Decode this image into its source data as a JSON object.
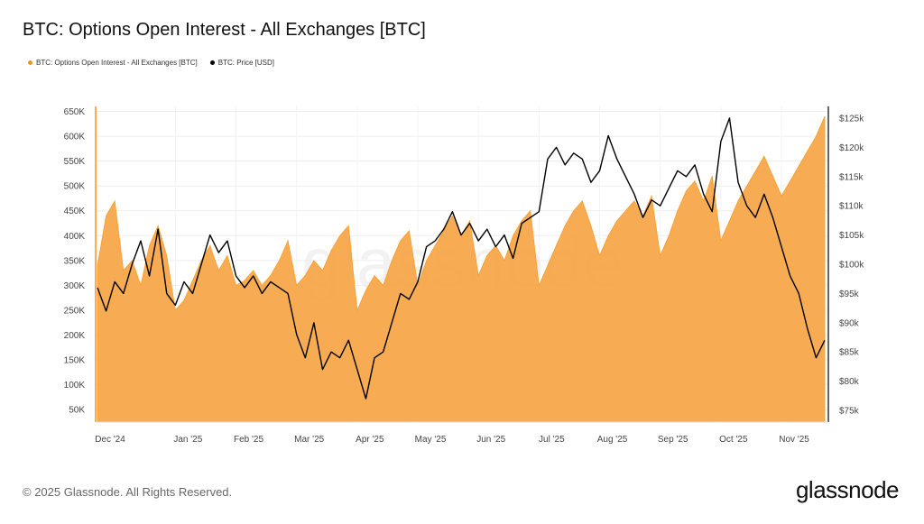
{
  "title": "BTC: Options Open Interest - All Exchanges [BTC]",
  "legend": [
    {
      "label": "BTC: Options Open Interest - All Exchanges [BTC]",
      "color": "#f7931a"
    },
    {
      "label": "BTC: Price [USD]",
      "color": "#000000"
    }
  ],
  "watermark": "glassnode",
  "footer": "© 2025 Glassnode. All Rights Reserved.",
  "brand": "glassnode",
  "colors": {
    "area": "#f7a84a",
    "area_stroke": "#f79a22",
    "price": "#000000"
  },
  "chart_data": {
    "type": "area",
    "x_tick_labels": [
      "Dec '24",
      "Jan '25",
      "Feb '25",
      "Mar '25",
      "Apr '25",
      "May '25",
      "Jun '25",
      "Jul '25",
      "Aug '25",
      "Sep '25",
      "Oct '25",
      "Nov '25"
    ],
    "y_left": {
      "ticks": [
        "50K",
        "100K",
        "150K",
        "200K",
        "250K",
        "300K",
        "350K",
        "400K",
        "450K",
        "500K",
        "550K",
        "600K",
        "650K"
      ],
      "range": [
        25000,
        660000
      ]
    },
    "y_right": {
      "ticks": [
        "$75k",
        "$80k",
        "$85k",
        "$90k",
        "$95k",
        "$100k",
        "$105k",
        "$110k",
        "$115k",
        "$120k",
        "$125k"
      ],
      "range": [
        73000,
        127000
      ]
    },
    "grid": true,
    "legend_position": "top-left",
    "series": [
      {
        "name": "BTC: Options Open Interest - All Exchanges [BTC]",
        "axis": "left",
        "type": "area",
        "points": [
          [
            "Dec '24",
            340000
          ],
          [
            "",
            440000
          ],
          [
            "",
            470000
          ],
          [
            "",
            330000
          ],
          [
            "",
            350000
          ],
          [
            "",
            300000
          ],
          [
            "",
            380000
          ],
          [
            "",
            420000
          ],
          [
            "",
            360000
          ],
          [
            "Jan '25",
            250000
          ],
          [
            "",
            270000
          ],
          [
            "",
            310000
          ],
          [
            "",
            350000
          ],
          [
            "",
            380000
          ],
          [
            "",
            330000
          ],
          [
            "",
            360000
          ],
          [
            "Feb '25",
            300000
          ],
          [
            "",
            310000
          ],
          [
            "",
            330000
          ],
          [
            "",
            300000
          ],
          [
            "",
            320000
          ],
          [
            "",
            350000
          ],
          [
            "",
            390000
          ],
          [
            "Mar '25",
            300000
          ],
          [
            "",
            320000
          ],
          [
            "",
            350000
          ],
          [
            "",
            330000
          ],
          [
            "",
            370000
          ],
          [
            "",
            400000
          ],
          [
            "",
            420000
          ],
          [
            "Apr '25",
            250000
          ],
          [
            "",
            290000
          ],
          [
            "",
            320000
          ],
          [
            "",
            300000
          ],
          [
            "",
            350000
          ],
          [
            "",
            390000
          ],
          [
            "",
            410000
          ],
          [
            "May '25",
            300000
          ],
          [
            "",
            350000
          ],
          [
            "",
            380000
          ],
          [
            "",
            410000
          ],
          [
            "",
            440000
          ],
          [
            "",
            400000
          ],
          [
            "",
            430000
          ],
          [
            "Jun '25",
            320000
          ],
          [
            "",
            360000
          ],
          [
            "",
            380000
          ],
          [
            "",
            350000
          ],
          [
            "",
            400000
          ],
          [
            "",
            430000
          ],
          [
            "",
            450000
          ],
          [
            "Jul '25",
            300000
          ],
          [
            "",
            340000
          ],
          [
            "",
            380000
          ],
          [
            "",
            420000
          ],
          [
            "",
            450000
          ],
          [
            "",
            470000
          ],
          [
            "",
            420000
          ],
          [
            "Aug '25",
            360000
          ],
          [
            "",
            400000
          ],
          [
            "",
            430000
          ],
          [
            "",
            450000
          ],
          [
            "",
            470000
          ],
          [
            "",
            440000
          ],
          [
            "",
            480000
          ],
          [
            "Sep '25",
            360000
          ],
          [
            "",
            400000
          ],
          [
            "",
            450000
          ],
          [
            "",
            490000
          ],
          [
            "",
            510000
          ],
          [
            "",
            470000
          ],
          [
            "",
            520000
          ],
          [
            "Oct '25",
            390000
          ],
          [
            "",
            430000
          ],
          [
            "",
            470000
          ],
          [
            "",
            500000
          ],
          [
            "",
            530000
          ],
          [
            "",
            560000
          ],
          [
            "",
            520000
          ],
          [
            "Nov '25",
            480000
          ],
          [
            "",
            510000
          ],
          [
            "",
            540000
          ],
          [
            "",
            570000
          ],
          [
            "",
            600000
          ],
          [
            "",
            640000
          ]
        ]
      },
      {
        "name": "BTC: Price [USD]",
        "axis": "right",
        "type": "line",
        "points": [
          [
            "Dec '24",
            96000
          ],
          [
            "",
            92000
          ],
          [
            "",
            97000
          ],
          [
            "",
            95000
          ],
          [
            "",
            100000
          ],
          [
            "",
            104000
          ],
          [
            "",
            98000
          ],
          [
            "",
            106000
          ],
          [
            "",
            95000
          ],
          [
            "Jan '25",
            93000
          ],
          [
            "",
            97000
          ],
          [
            "",
            95000
          ],
          [
            "",
            100000
          ],
          [
            "",
            105000
          ],
          [
            "",
            102000
          ],
          [
            "",
            104000
          ],
          [
            "Feb '25",
            98000
          ],
          [
            "",
            96000
          ],
          [
            "",
            98000
          ],
          [
            "",
            95000
          ],
          [
            "",
            97000
          ],
          [
            "",
            96000
          ],
          [
            "",
            95000
          ],
          [
            "Mar '25",
            88000
          ],
          [
            "",
            84000
          ],
          [
            "",
            90000
          ],
          [
            "",
            82000
          ],
          [
            "",
            85000
          ],
          [
            "",
            84000
          ],
          [
            "",
            87000
          ],
          [
            "Apr '25",
            82000
          ],
          [
            "",
            77000
          ],
          [
            "",
            84000
          ],
          [
            "",
            85000
          ],
          [
            "",
            90000
          ],
          [
            "",
            95000
          ],
          [
            "",
            94000
          ],
          [
            "May '25",
            97000
          ],
          [
            "",
            103000
          ],
          [
            "",
            104000
          ],
          [
            "",
            106000
          ],
          [
            "",
            109000
          ],
          [
            "",
            105000
          ],
          [
            "",
            107000
          ],
          [
            "Jun '25",
            104000
          ],
          [
            "",
            106000
          ],
          [
            "",
            103000
          ],
          [
            "",
            105000
          ],
          [
            "",
            101000
          ],
          [
            "",
            107000
          ],
          [
            "",
            108000
          ],
          [
            "Jul '25",
            109000
          ],
          [
            "",
            118000
          ],
          [
            "",
            120000
          ],
          [
            "",
            117000
          ],
          [
            "",
            119000
          ],
          [
            "",
            118000
          ],
          [
            "",
            114000
          ],
          [
            "Aug '25",
            116000
          ],
          [
            "",
            122000
          ],
          [
            "",
            118000
          ],
          [
            "",
            115000
          ],
          [
            "",
            112000
          ],
          [
            "",
            108000
          ],
          [
            "",
            111000
          ],
          [
            "Sep '25",
            110000
          ],
          [
            "",
            113000
          ],
          [
            "",
            116000
          ],
          [
            "",
            115000
          ],
          [
            "",
            117000
          ],
          [
            "",
            112000
          ],
          [
            "",
            109000
          ],
          [
            "Oct '25",
            121000
          ],
          [
            "",
            125000
          ],
          [
            "",
            114000
          ],
          [
            "",
            110000
          ],
          [
            "",
            108000
          ],
          [
            "",
            112000
          ],
          [
            "",
            108000
          ],
          [
            "Nov '25",
            103000
          ],
          [
            "",
            98000
          ],
          [
            "",
            95000
          ],
          [
            "",
            89000
          ],
          [
            "",
            84000
          ],
          [
            "",
            87000
          ]
        ]
      }
    ]
  }
}
